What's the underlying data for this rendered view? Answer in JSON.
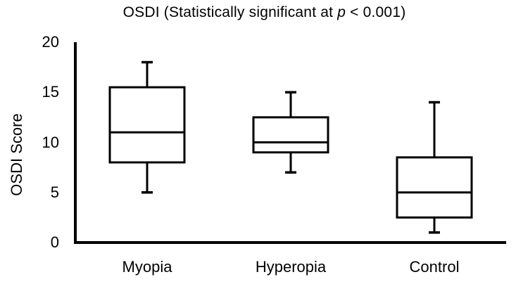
{
  "title": {
    "prefix": "OSDI (Statistically significant at ",
    "p": "p",
    "suffix": " < 0.001)"
  },
  "chart_data": {
    "type": "boxplot",
    "title": "OSDI (Statistically significant at p < 0.001)",
    "xlabel": "",
    "ylabel": "OSDI Score",
    "ylim": [
      0,
      20
    ],
    "yticks": [
      0,
      5,
      10,
      15,
      20
    ],
    "grid": false,
    "legend": "none",
    "categories": [
      "Myopia",
      "Hyperopia",
      "Control"
    ],
    "series": [
      {
        "name": "Myopia",
        "min": 5,
        "q1": 8,
        "median": 11,
        "q3": 15.5,
        "max": 18
      },
      {
        "name": "Hyperopia",
        "min": 7,
        "q1": 9,
        "median": 10,
        "q3": 12.5,
        "max": 15
      },
      {
        "name": "Control",
        "min": 1,
        "q1": 2.5,
        "median": 5,
        "q3": 8.5,
        "max": 14
      }
    ],
    "colors": {
      "stroke": "#000000",
      "box_fill": "#ffffff",
      "background": "#ffffff"
    }
  }
}
